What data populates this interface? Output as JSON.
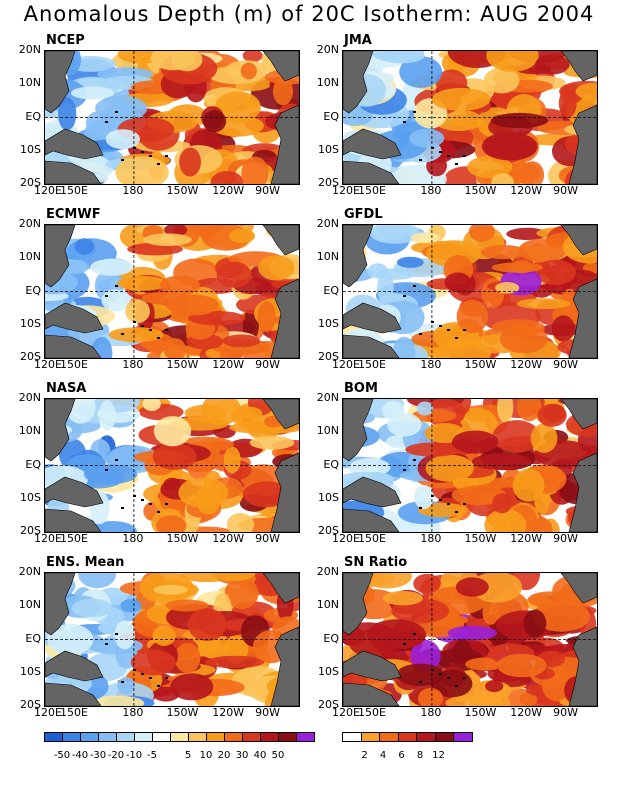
{
  "title": "Anomalous Depth (m) of 20C Isotherm: AUG 2004",
  "lat_labels": [
    "20N",
    "10N",
    "EQ",
    "10S",
    "20S"
  ],
  "lon_labels": [
    "120E",
    "150E",
    "180",
    "150W",
    "120W",
    "90W"
  ],
  "panels": [
    {
      "name": "NCEP",
      "seed": 11,
      "bias": 0.05
    },
    {
      "name": "JMA",
      "seed": 23,
      "bias": 0.12
    },
    {
      "name": "ECMWF",
      "seed": 37,
      "bias": 0.08
    },
    {
      "name": "GFDL",
      "seed": 41,
      "bias": 0.15
    },
    {
      "name": "NASA",
      "seed": 53,
      "bias": 0.06
    },
    {
      "name": "BOM",
      "seed": 67,
      "bias": 0.1
    },
    {
      "name": "ENS. Mean",
      "seed": 79,
      "bias": 0.05
    },
    {
      "name": "SN Ratio",
      "seed": 97,
      "bias": 0.0
    }
  ],
  "colorbar_depth": {
    "colors": [
      "#1c5fd6",
      "#3e84e6",
      "#5aa0f0",
      "#86bff5",
      "#a9d6f7",
      "#d6f0fa",
      "#ffffff",
      "#fde8a0",
      "#fbc55c",
      "#f79c1b",
      "#f26b1a",
      "#d9361f",
      "#b5161c",
      "#8a0d14",
      "#9b1fd8"
    ],
    "labels": [
      "-50",
      "-40",
      "-30",
      "-20",
      "-10",
      "-5",
      "5",
      "10",
      "20",
      "30",
      "40",
      "50"
    ]
  },
  "colorbar_sn": {
    "colors": [
      "#ffffff",
      "#f9a22a",
      "#f26b1a",
      "#d9361f",
      "#b5161c",
      "#8a0d14",
      "#9b1fd8"
    ],
    "labels": [
      "2",
      "4",
      "6",
      "8",
      "12"
    ]
  },
  "land_color": "#646464"
}
